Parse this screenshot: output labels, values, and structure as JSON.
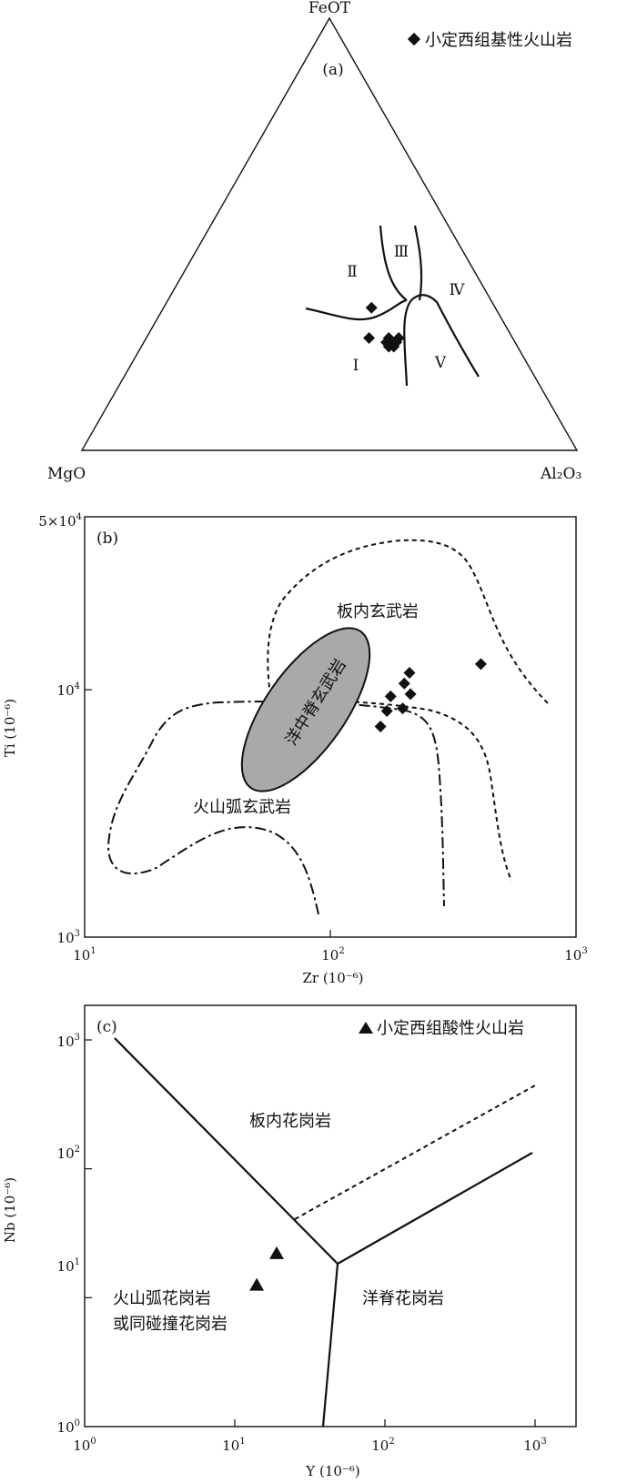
{
  "chart_data": [
    {
      "panel": "(a)",
      "type": "ternary",
      "apex_labels": [
        "FeOT",
        "MgO",
        "Al₂O₃"
      ],
      "legend": "小定西组基性火山岩",
      "field_labels": [
        "Ⅰ",
        "Ⅱ",
        "Ⅲ",
        "Ⅳ",
        "Ⅴ"
      ],
      "points": [
        {
          "FeOT": 0.33,
          "MgO": 0.25,
          "Al2O3": 0.42
        },
        {
          "FeOT": 0.26,
          "MgO": 0.29,
          "Al2O3": 0.45
        },
        {
          "FeOT": 0.26,
          "MgO": 0.25,
          "Al2O3": 0.49
        },
        {
          "FeOT": 0.25,
          "MgO": 0.26,
          "Al2O3": 0.49
        },
        {
          "FeOT": 0.25,
          "MgO": 0.25,
          "Al2O3": 0.5
        },
        {
          "FeOT": 0.24,
          "MgO": 0.25,
          "Al2O3": 0.51
        },
        {
          "FeOT": 0.24,
          "MgO": 0.26,
          "Al2O3": 0.5
        },
        {
          "FeOT": 0.26,
          "MgO": 0.23,
          "Al2O3": 0.51
        },
        {
          "FeOT": 0.25,
          "MgO": 0.24,
          "Al2O3": 0.51
        }
      ]
    },
    {
      "panel": "(b)",
      "type": "scatter",
      "xlabel": "Zr (10⁻⁶)",
      "ylabel": "Ti (10⁻⁶)",
      "xscale": "log",
      "yscale": "log",
      "xlim": [
        10,
        1000
      ],
      "ylim": [
        1000,
        50000
      ],
      "xticks": [
        {
          "base": "10",
          "exp": "1"
        },
        {
          "base": "10",
          "exp": "2"
        },
        {
          "base": "10",
          "exp": "3"
        }
      ],
      "yticks": [
        {
          "base": "10",
          "exp": "3"
        },
        {
          "base": "10",
          "exp": "4"
        },
        {
          "base": "5×10",
          "exp": "4"
        }
      ],
      "field_labels": [
        "板内玄武岩",
        "洋中脊玄武岩",
        "火山弧玄武岩"
      ],
      "points": [
        {
          "x": 200,
          "y": 10600
        },
        {
          "x": 210,
          "y": 11700
        },
        {
          "x": 176,
          "y": 9400
        },
        {
          "x": 212,
          "y": 9600
        },
        {
          "x": 197,
          "y": 8400
        },
        {
          "x": 170,
          "y": 8200
        },
        {
          "x": 160,
          "y": 7100
        },
        {
          "x": 410,
          "y": 12700
        }
      ]
    },
    {
      "panel": "(c)",
      "type": "scatter",
      "xlabel": "Y (10⁻⁶)",
      "ylabel": "Nb (10⁻⁶)",
      "xscale": "log",
      "yscale": "log",
      "xlim": [
        1,
        1000
      ],
      "ylim": [
        1,
        1000
      ],
      "xticks": [
        {
          "base": "10",
          "exp": "0"
        },
        {
          "base": "10",
          "exp": "1"
        },
        {
          "base": "10",
          "exp": "2"
        },
        {
          "base": "10",
          "exp": "3"
        }
      ],
      "yticks": [
        {
          "base": "10",
          "exp": "0"
        },
        {
          "base": "10",
          "exp": "1"
        },
        {
          "base": "10",
          "exp": "2"
        },
        {
          "base": "10",
          "exp": "3"
        }
      ],
      "legend": "小定西组酸性火山岩",
      "field_labels": [
        "板内花岗岩",
        "洋脊花岗岩",
        "火山弧花岗岩",
        "或同碰撞花岗岩"
      ],
      "points": [
        {
          "x": 14,
          "y": 12.5
        },
        {
          "x": 19,
          "y": 22
        }
      ]
    }
  ]
}
